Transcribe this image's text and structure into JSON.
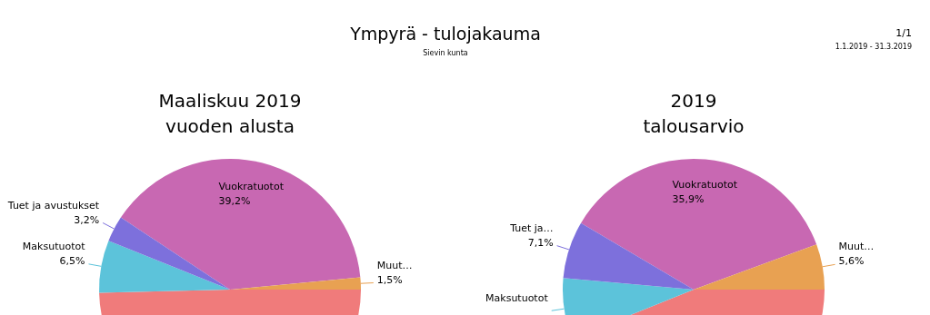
{
  "chart_data": [
    {
      "type": "other",
      "title": "Ympyrä - tulojakauma",
      "subtitle": "Sievin kunta",
      "annotations": [
        "1/1",
        "1.1.2019 - 31.3.2019"
      ]
    },
    {
      "type": "pie",
      "title": "Maaliskuu 2019\nvuoden alusta",
      "categories": [
        "Vuokratuotot",
        "Muut…",
        null,
        "Maksutuotot",
        "Tuet ja avustukset"
      ],
      "values": [
        39.2,
        1.5,
        49.6,
        6.5,
        3.2
      ],
      "value_labels": [
        "39,2%",
        "1,5%",
        null,
        "6,5%",
        "3,2%"
      ],
      "colors": [
        "#c868b2",
        "#e8a152",
        "#f07b7b",
        "#5cc3da",
        "#7d70dc"
      ]
    },
    {
      "type": "pie",
      "title": "2019\ntalousarvio",
      "categories": [
        "Vuokratuotot",
        "Muut…",
        null,
        "Maksutuotot",
        "Tuet ja…"
      ],
      "values": [
        35.9,
        5.6,
        43.9,
        7.5,
        7.1
      ],
      "value_labels": [
        "35,9%",
        "5,6%",
        null,
        null,
        "7,1%"
      ],
      "colors": [
        "#c868b2",
        "#e8a152",
        "#f07b7b",
        "#5cc3da",
        "#7d70dc"
      ]
    }
  ]
}
